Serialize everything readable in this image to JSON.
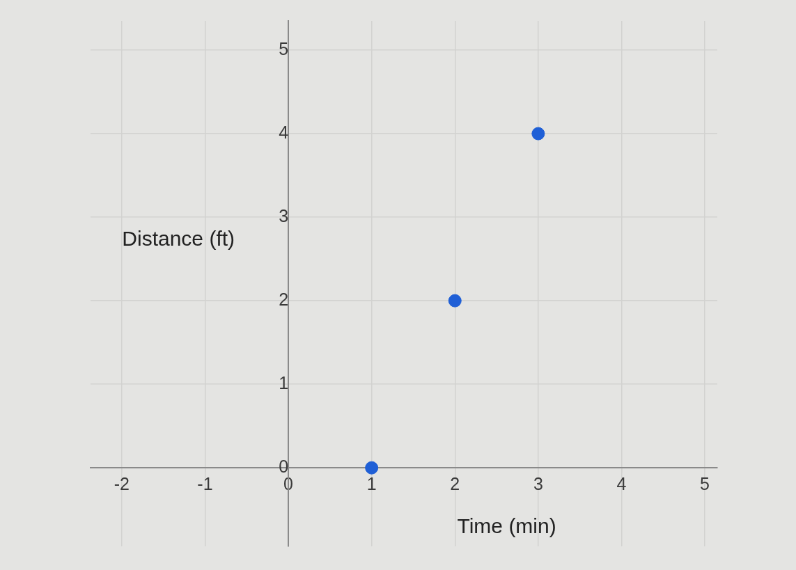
{
  "chart_data": {
    "type": "scatter",
    "xlabel": "Time (min)",
    "ylabel": "Distance (ft)",
    "x": [
      1,
      2,
      3
    ],
    "series": [
      {
        "color": "#1f5fd6",
        "values": [
          0,
          2,
          4
        ]
      }
    ],
    "xlim": [
      -2.375,
      5.15
    ],
    "xticks": [
      -2,
      -1,
      0,
      1,
      2,
      3,
      4,
      5
    ],
    "ylim": [
      -0.94,
      5.35
    ],
    "yticks": [
      0,
      1,
      2,
      3,
      4,
      5
    ],
    "grid": true,
    "marker": "circle"
  }
}
